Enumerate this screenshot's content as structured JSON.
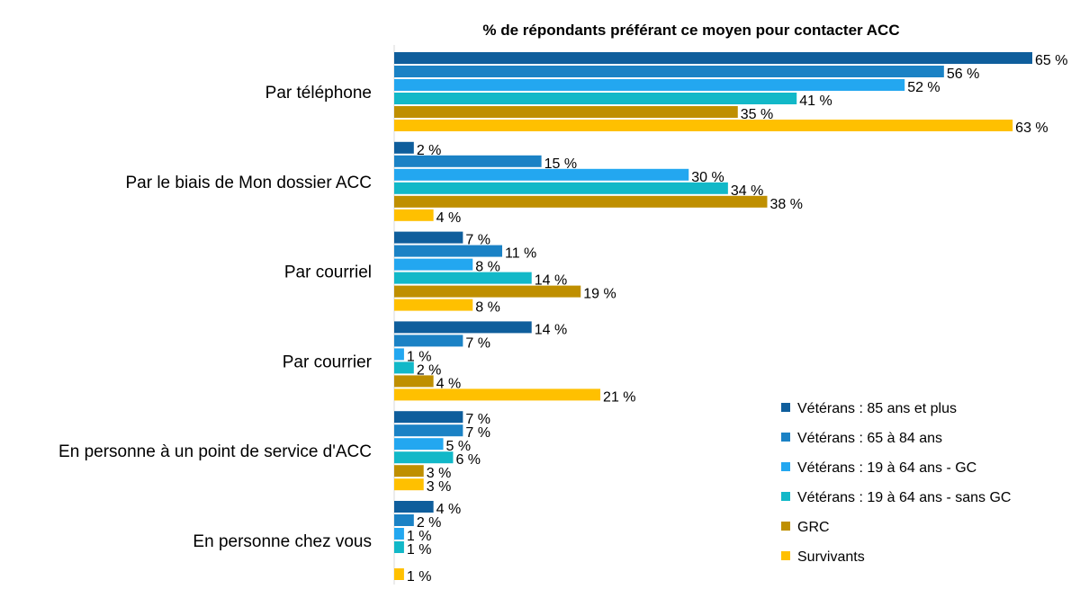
{
  "chart_data": {
    "type": "bar",
    "orientation": "horizontal",
    "title": "% de répondants préférant ce moyen pour contacter ACC",
    "categories": [
      "Par téléphone",
      "Par le biais de Mon dossier ACC",
      "Par courriel",
      "Par courrier",
      "En personne à un point de service d'ACC",
      "En personne chez vous"
    ],
    "series": [
      {
        "name": "Vétérans : 85 ans et plus",
        "color": "#0F5E9C",
        "values": [
          65,
          2,
          7,
          14,
          7,
          4
        ]
      },
      {
        "name": "Vétérans : 65 à 84 ans",
        "color": "#1B82C5",
        "values": [
          56,
          15,
          11,
          7,
          7,
          2
        ]
      },
      {
        "name": "Vétérans : 19 à 64 ans - GC",
        "color": "#23A7F0",
        "values": [
          52,
          30,
          8,
          1,
          5,
          1
        ]
      },
      {
        "name": "Vétérans : 19 à 64 ans - sans GC",
        "color": "#12B8C8",
        "values": [
          41,
          34,
          14,
          2,
          6,
          1
        ]
      },
      {
        "name": "GRC",
        "color": "#BF8F00",
        "values": [
          35,
          38,
          19,
          4,
          3,
          null
        ]
      },
      {
        "name": "Survivants",
        "color": "#FFC000",
        "values": [
          63,
          4,
          8,
          21,
          3,
          1
        ]
      }
    ],
    "value_suffix": " %",
    "xlim": [
      0,
      65
    ],
    "grid": false,
    "legend_position": "bottom-right"
  }
}
